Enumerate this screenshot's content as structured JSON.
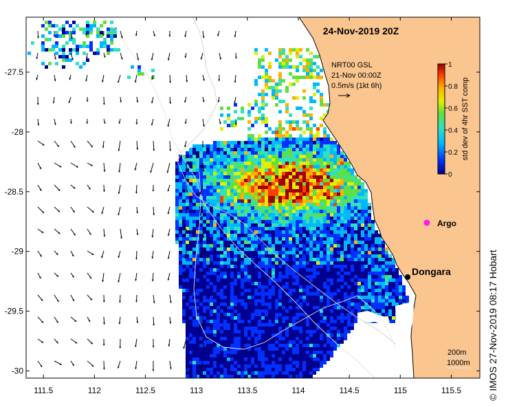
{
  "title": "24-Nov-2019 20Z",
  "current_label": {
    "line1": "NRT00 GSL",
    "line2": "21-Nov 00:00Z",
    "line3": "0.5m/s (1kt 6h)"
  },
  "colorbar": {
    "label": "std dev of 4hr SST comp",
    "ticks": [
      "0",
      "0.2",
      "0.4",
      "0.6",
      "0.8",
      "1"
    ],
    "colors": [
      "#00008f",
      "#0030ff",
      "#00b8ff",
      "#30e0c0",
      "#60e040",
      "#e0f000",
      "#ffb000",
      "#ff4000",
      "#a00000"
    ]
  },
  "places": [
    {
      "name": "Argo",
      "lon": 115.12,
      "lat": -28.84,
      "color": "#ff00ff"
    },
    {
      "name": "Dongara",
      "lon": 114.93,
      "lat": -29.26,
      "color": "#000000"
    }
  ],
  "scale": {
    "label1": "200m",
    "label2": "1000m"
  },
  "credit": "© IMOS 27-Nov-2019 08:17 Hobart",
  "axes": {
    "x_ticks": [
      "111.5",
      "112",
      "112.5",
      "113",
      "113.5",
      "114",
      "114.5",
      "115",
      "115.5"
    ],
    "y_ticks": [
      "-27.5",
      "-28",
      "-28.5",
      "-29",
      "-29.5",
      "-30"
    ],
    "xlim": [
      111.33,
      115.78
    ],
    "ylim": [
      -30.06,
      -27.04
    ]
  },
  "colors": {
    "land": "#fac58f",
    "ocean_bg": "#ffffff",
    "data_low": "#00008f"
  }
}
